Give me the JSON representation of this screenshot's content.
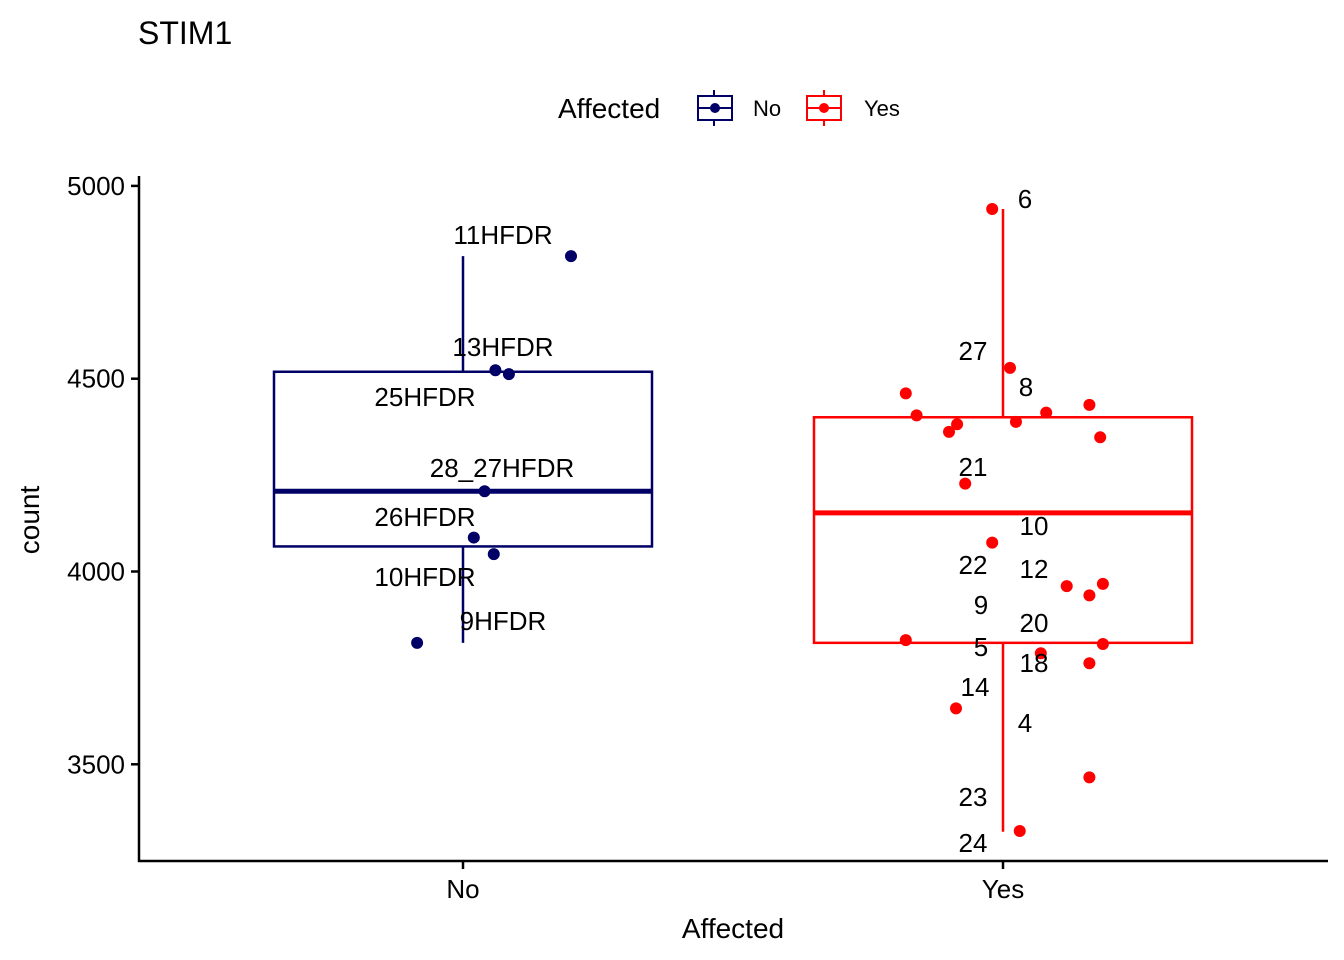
{
  "chart_data": {
    "type": "box",
    "title": "STIM1",
    "xlabel": "Affected",
    "ylabel": "count",
    "categories": [
      "No",
      "Yes"
    ],
    "ylim": [
      3250,
      5020
    ],
    "yticks": [
      3500,
      4000,
      4500,
      5000
    ],
    "grid": false,
    "legend": {
      "title": "Affected",
      "position": "top",
      "entries": [
        {
          "label": "No",
          "color": "#000066"
        },
        {
          "label": "Yes",
          "color": "#ff0000"
        }
      ]
    },
    "boxes": [
      {
        "category": "No",
        "color": "#000066",
        "min": 3815,
        "q1": 4065,
        "median": 4208,
        "q3": 4518,
        "max": 4818
      },
      {
        "category": "Yes",
        "color": "#ff0000",
        "min": 3325,
        "q1": 3815,
        "median": 4152,
        "q3": 4400,
        "max": 4940
      }
    ],
    "points": [
      {
        "category": "No",
        "jitter": 0.2,
        "y": 4818,
        "label": "11HFDR"
      },
      {
        "category": "No",
        "jitter": 0.06,
        "y": 4522,
        "label": "13HFDR"
      },
      {
        "category": "No",
        "jitter": 0.085,
        "y": 4512,
        "label": "25HFDR"
      },
      {
        "category": "No",
        "jitter": 0.04,
        "y": 4208,
        "label": "28_27HFDR"
      },
      {
        "category": "No",
        "jitter": 0.02,
        "y": 4088,
        "label": "26HFDR"
      },
      {
        "category": "No",
        "jitter": 0.057,
        "y": 4045,
        "label": "10HFDR"
      },
      {
        "category": "No",
        "jitter": -0.085,
        "y": 3815,
        "label": "9HFDR"
      },
      {
        "category": "Yes",
        "jitter": -0.02,
        "y": 4940,
        "label": "6"
      },
      {
        "category": "Yes",
        "jitter": 0.013,
        "y": 4528,
        "label": "27"
      },
      {
        "category": "Yes",
        "jitter": -0.18,
        "y": 4462,
        "label": ""
      },
      {
        "category": "Yes",
        "jitter": 0.16,
        "y": 4432,
        "label": ""
      },
      {
        "category": "Yes",
        "jitter": 0.08,
        "y": 4412,
        "label": ""
      },
      {
        "category": "Yes",
        "jitter": -0.16,
        "y": 4405,
        "label": ""
      },
      {
        "category": "Yes",
        "jitter": 0.024,
        "y": 4388,
        "label": "8"
      },
      {
        "category": "Yes",
        "jitter": -0.085,
        "y": 4382,
        "label": ""
      },
      {
        "category": "Yes",
        "jitter": -0.1,
        "y": 4362,
        "label": ""
      },
      {
        "category": "Yes",
        "jitter": 0.18,
        "y": 4348,
        "label": ""
      },
      {
        "category": "Yes",
        "jitter": -0.07,
        "y": 4228,
        "label": "21"
      },
      {
        "category": "Yes",
        "jitter": -0.02,
        "y": 4075,
        "label": "10"
      },
      {
        "category": "Yes",
        "jitter": 0.185,
        "y": 3968,
        "label": ""
      },
      {
        "category": "Yes",
        "jitter": 0.118,
        "y": 3962,
        "label": "22"
      },
      {
        "category": "Yes",
        "jitter": 0.16,
        "y": 3938,
        "label": "12"
      },
      {
        "category": "Yes",
        "jitter": -0.18,
        "y": 3822,
        "label": "9"
      },
      {
        "category": "Yes",
        "jitter": 0.185,
        "y": 3812,
        "label": "20"
      },
      {
        "category": "Yes",
        "jitter": 0.07,
        "y": 3788,
        "label": "5"
      },
      {
        "category": "Yes",
        "jitter": 0.16,
        "y": 3762,
        "label": "18"
      },
      {
        "category": "Yes",
        "jitter": -0.087,
        "y": 3645,
        "label": "14"
      },
      {
        "category": "Yes",
        "jitter": 0.16,
        "y": 3466,
        "label": "4"
      },
      {
        "category": "Yes",
        "jitter": 0.031,
        "y": 3327,
        "label": "23"
      }
    ],
    "extra_labels": [
      {
        "category": "Yes",
        "text": "24"
      }
    ]
  }
}
